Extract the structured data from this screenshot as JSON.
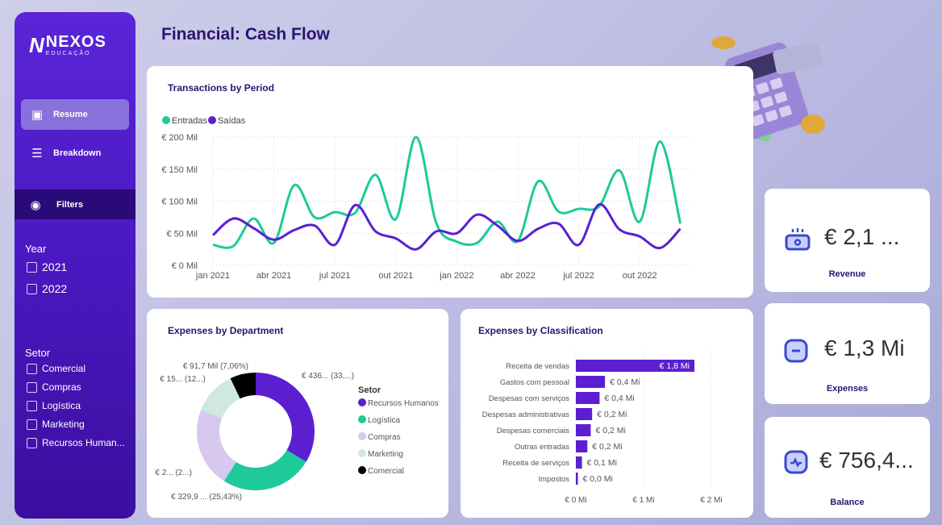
{
  "sidebar": {
    "logo": {
      "mark": "N",
      "brand": "NEXOS",
      "sub": "EDUCAÇÃO"
    },
    "nav": [
      {
        "label": "Resume",
        "icon": "layout-icon"
      },
      {
        "label": "Breakdown",
        "icon": "menu-icon"
      }
    ],
    "filters_label": "Filters",
    "year": {
      "label": "Year",
      "options": [
        "2021",
        "2022"
      ]
    },
    "setor": {
      "label": "Setor",
      "options": [
        "Comercial",
        "Compras",
        "Logística",
        "Marketing",
        "Recursos Human..."
      ]
    }
  },
  "header": {
    "title": "Financial: Cash Flow"
  },
  "kpis": [
    {
      "value": "€ 2,1 ...",
      "label": "Revenue",
      "icon": "money-icon"
    },
    {
      "value": "€ 1,3 Mi",
      "label": "Expenses",
      "icon": "minus-icon"
    },
    {
      "value": "€ 756,4...",
      "label": "Balance",
      "icon": "activity-icon"
    }
  ],
  "colors": {
    "entradas": "#1ec99a",
    "saidas": "#5b1fd1",
    "compras": "#d6c8ee",
    "marketing": "#cfe8e0",
    "comercial": "#000000"
  },
  "chart_data": [
    {
      "type": "line",
      "title": "Transactions by Period",
      "legend": [
        "Entradas",
        "Saídas"
      ],
      "legend_position": "top-left",
      "xticks": [
        "jan 2021",
        "abr 2021",
        "jul 2021",
        "out 2021",
        "jan 2022",
        "abr 2022",
        "jul 2022",
        "out 2022"
      ],
      "yticks": [
        "€ 0 Mil",
        "€ 50 Mil",
        "€ 100 Mil",
        "€ 150 Mil",
        "€ 200 Mil"
      ],
      "ylim": [
        0,
        200
      ],
      "series": [
        {
          "name": "Entradas",
          "values": [
            32,
            30,
            73,
            35,
            125,
            75,
            83,
            82,
            141,
            72,
            200,
            65,
            37,
            35,
            68,
            38,
            131,
            84,
            88,
            92,
            148,
            68,
            193,
            65
          ]
        },
        {
          "name": "Saídas",
          "values": [
            47,
            73,
            58,
            40,
            55,
            62,
            32,
            94,
            53,
            42,
            25,
            53,
            50,
            79,
            62,
            38,
            57,
            65,
            32,
            95,
            56,
            45,
            27,
            57
          ]
        }
      ]
    },
    {
      "type": "pie",
      "title": "Expenses by Department",
      "legend_title": "Setor",
      "categories": [
        "Recursos Humanos",
        "Logística",
        "Compras",
        "Marketing",
        "Comercial"
      ],
      "values": [
        33.6,
        25.43,
        21.9,
        12.0,
        7.06
      ],
      "labels": [
        "€ 436... (33,...)",
        "€ 329,9 ... (25,43%)",
        "€ 2... (2...)",
        "€ 15... (12...)",
        "€ 91,7 Mil (7,06%)"
      ]
    },
    {
      "type": "bar",
      "title": "Expenses by Classification",
      "categories": [
        "Receita de vendas",
        "Gastos com pessoal",
        "Despesas com serviços",
        "Despesas administrativas",
        "Despesas comerciais",
        "Outras entradas",
        "Receita de serviços",
        "Impostos"
      ],
      "values": [
        1.75,
        0.43,
        0.35,
        0.24,
        0.22,
        0.17,
        0.09,
        0.03
      ],
      "labels": [
        "€ 1,8 Mi",
        "€ 0,4 Mi",
        "€ 0,4 Mi",
        "€ 0,2 Mi",
        "€ 0,2 Mi",
        "€ 0,2 Mi",
        "€ 0,1 Mi",
        "€ 0,0 Mi"
      ],
      "xticks": [
        "€ 0 Mi",
        "€ 1 Mi",
        "€ 2 Mi"
      ],
      "xlim": [
        0,
        2
      ]
    }
  ]
}
